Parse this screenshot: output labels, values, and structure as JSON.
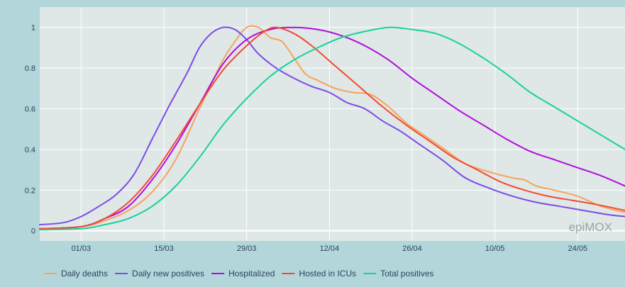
{
  "watermark": "epiMOX",
  "chart_data": {
    "type": "line",
    "title": "",
    "xlabel": "",
    "ylabel": "",
    "x_tick_labels": [
      "01/03",
      "15/03",
      "29/03",
      "12/04",
      "26/04",
      "10/05",
      "24/05"
    ],
    "y_tick_labels": [
      "0",
      "0.2",
      "0.4",
      "0.6",
      "0.8",
      "1"
    ],
    "xlim": [
      "2020-02-23",
      "2020-06-01"
    ],
    "ylim": [
      -0.05,
      1.1
    ],
    "grid": true,
    "legend_position": "bottom",
    "background": "#dfe7e7",
    "paper_background": "#b3d6da",
    "series": [
      {
        "name": "Daily deaths",
        "color": "#f7a35c",
        "points": [
          [
            "2020-02-23",
            0.01
          ],
          [
            "2020-03-01",
            0.02
          ],
          [
            "2020-03-05",
            0.05
          ],
          [
            "2020-03-09",
            0.1
          ],
          [
            "2020-03-13",
            0.19
          ],
          [
            "2020-03-17",
            0.35
          ],
          [
            "2020-03-21",
            0.6
          ],
          [
            "2020-03-23",
            0.72
          ],
          [
            "2020-03-25",
            0.84
          ],
          [
            "2020-03-27",
            0.93
          ],
          [
            "2020-03-29",
            1.0
          ],
          [
            "2020-03-31",
            1.0
          ],
          [
            "2020-04-02",
            0.95
          ],
          [
            "2020-04-04",
            0.93
          ],
          [
            "2020-04-06",
            0.85
          ],
          [
            "2020-04-08",
            0.77
          ],
          [
            "2020-04-10",
            0.74
          ],
          [
            "2020-04-13",
            0.7
          ],
          [
            "2020-04-16",
            0.68
          ],
          [
            "2020-04-19",
            0.67
          ],
          [
            "2020-04-22",
            0.61
          ],
          [
            "2020-04-25",
            0.53
          ],
          [
            "2020-04-28",
            0.47
          ],
          [
            "2020-05-01",
            0.41
          ],
          [
            "2020-05-05",
            0.33
          ],
          [
            "2020-05-09",
            0.29
          ],
          [
            "2020-05-13",
            0.26
          ],
          [
            "2020-05-15",
            0.25
          ],
          [
            "2020-05-17",
            0.22
          ],
          [
            "2020-05-20",
            0.2
          ],
          [
            "2020-05-24",
            0.17
          ],
          [
            "2020-05-28",
            0.12
          ],
          [
            "2020-06-01",
            0.09
          ]
        ]
      },
      {
        "name": "Daily new positives",
        "color": "#7c4ce6",
        "points": [
          [
            "2020-02-23",
            0.03
          ],
          [
            "2020-02-27",
            0.04
          ],
          [
            "2020-03-01",
            0.07
          ],
          [
            "2020-03-04",
            0.12
          ],
          [
            "2020-03-07",
            0.18
          ],
          [
            "2020-03-10",
            0.28
          ],
          [
            "2020-03-13",
            0.45
          ],
          [
            "2020-03-16",
            0.62
          ],
          [
            "2020-03-19",
            0.78
          ],
          [
            "2020-03-21",
            0.9
          ],
          [
            "2020-03-23",
            0.97
          ],
          [
            "2020-03-25",
            1.0
          ],
          [
            "2020-03-27",
            0.99
          ],
          [
            "2020-03-29",
            0.94
          ],
          [
            "2020-03-31",
            0.87
          ],
          [
            "2020-04-03",
            0.8
          ],
          [
            "2020-04-06",
            0.75
          ],
          [
            "2020-04-09",
            0.71
          ],
          [
            "2020-04-12",
            0.68
          ],
          [
            "2020-04-15",
            0.63
          ],
          [
            "2020-04-18",
            0.6
          ],
          [
            "2020-04-21",
            0.54
          ],
          [
            "2020-04-24",
            0.49
          ],
          [
            "2020-04-27",
            0.43
          ],
          [
            "2020-05-01",
            0.35
          ],
          [
            "2020-05-05",
            0.26
          ],
          [
            "2020-05-09",
            0.21
          ],
          [
            "2020-05-13",
            0.17
          ],
          [
            "2020-05-17",
            0.14
          ],
          [
            "2020-05-21",
            0.12
          ],
          [
            "2020-05-25",
            0.1
          ],
          [
            "2020-05-29",
            0.08
          ],
          [
            "2020-06-01",
            0.07
          ]
        ]
      },
      {
        "name": "Hospitalized",
        "color": "#b10dde",
        "points": [
          [
            "2020-02-23",
            0.01
          ],
          [
            "2020-03-01",
            0.02
          ],
          [
            "2020-03-05",
            0.06
          ],
          [
            "2020-03-09",
            0.12
          ],
          [
            "2020-03-13",
            0.25
          ],
          [
            "2020-03-17",
            0.42
          ],
          [
            "2020-03-21",
            0.62
          ],
          [
            "2020-03-25",
            0.82
          ],
          [
            "2020-03-29",
            0.94
          ],
          [
            "2020-04-02",
            0.99
          ],
          [
            "2020-04-06",
            1.0
          ],
          [
            "2020-04-10",
            0.99
          ],
          [
            "2020-04-14",
            0.96
          ],
          [
            "2020-04-18",
            0.91
          ],
          [
            "2020-04-22",
            0.84
          ],
          [
            "2020-04-26",
            0.75
          ],
          [
            "2020-04-30",
            0.67
          ],
          [
            "2020-05-04",
            0.59
          ],
          [
            "2020-05-08",
            0.52
          ],
          [
            "2020-05-12",
            0.45
          ],
          [
            "2020-05-16",
            0.39
          ],
          [
            "2020-05-20",
            0.35
          ],
          [
            "2020-05-24",
            0.31
          ],
          [
            "2020-05-28",
            0.27
          ],
          [
            "2020-06-01",
            0.22
          ]
        ]
      },
      {
        "name": "Hosted in ICUs",
        "color": "#f24a32",
        "points": [
          [
            "2020-02-23",
            0.01
          ],
          [
            "2020-03-01",
            0.02
          ],
          [
            "2020-03-05",
            0.06
          ],
          [
            "2020-03-09",
            0.14
          ],
          [
            "2020-03-13",
            0.27
          ],
          [
            "2020-03-17",
            0.44
          ],
          [
            "2020-03-21",
            0.62
          ],
          [
            "2020-03-25",
            0.79
          ],
          [
            "2020-03-29",
            0.91
          ],
          [
            "2020-04-01",
            0.98
          ],
          [
            "2020-04-03",
            1.0
          ],
          [
            "2020-04-06",
            0.97
          ],
          [
            "2020-04-09",
            0.91
          ],
          [
            "2020-04-13",
            0.81
          ],
          [
            "2020-04-17",
            0.71
          ],
          [
            "2020-04-21",
            0.61
          ],
          [
            "2020-04-25",
            0.52
          ],
          [
            "2020-04-29",
            0.44
          ],
          [
            "2020-05-03",
            0.36
          ],
          [
            "2020-05-07",
            0.3
          ],
          [
            "2020-05-11",
            0.24
          ],
          [
            "2020-05-15",
            0.2
          ],
          [
            "2020-05-19",
            0.17
          ],
          [
            "2020-05-23",
            0.15
          ],
          [
            "2020-05-27",
            0.13
          ],
          [
            "2020-06-01",
            0.1
          ]
        ]
      },
      {
        "name": "Total positives",
        "color": "#17d39a",
        "points": [
          [
            "2020-02-23",
            0.005
          ],
          [
            "2020-03-01",
            0.01
          ],
          [
            "2020-03-05",
            0.03
          ],
          [
            "2020-03-09",
            0.06
          ],
          [
            "2020-03-13",
            0.12
          ],
          [
            "2020-03-17",
            0.22
          ],
          [
            "2020-03-21",
            0.36
          ],
          [
            "2020-03-25",
            0.52
          ],
          [
            "2020-03-29",
            0.65
          ],
          [
            "2020-04-02",
            0.76
          ],
          [
            "2020-04-06",
            0.84
          ],
          [
            "2020-04-10",
            0.9
          ],
          [
            "2020-04-14",
            0.95
          ],
          [
            "2020-04-18",
            0.98
          ],
          [
            "2020-04-22",
            1.0
          ],
          [
            "2020-04-26",
            0.99
          ],
          [
            "2020-04-30",
            0.97
          ],
          [
            "2020-05-04",
            0.92
          ],
          [
            "2020-05-08",
            0.85
          ],
          [
            "2020-05-12",
            0.77
          ],
          [
            "2020-05-16",
            0.68
          ],
          [
            "2020-05-20",
            0.61
          ],
          [
            "2020-05-24",
            0.54
          ],
          [
            "2020-05-28",
            0.47
          ],
          [
            "2020-06-01",
            0.4
          ]
        ]
      }
    ]
  }
}
